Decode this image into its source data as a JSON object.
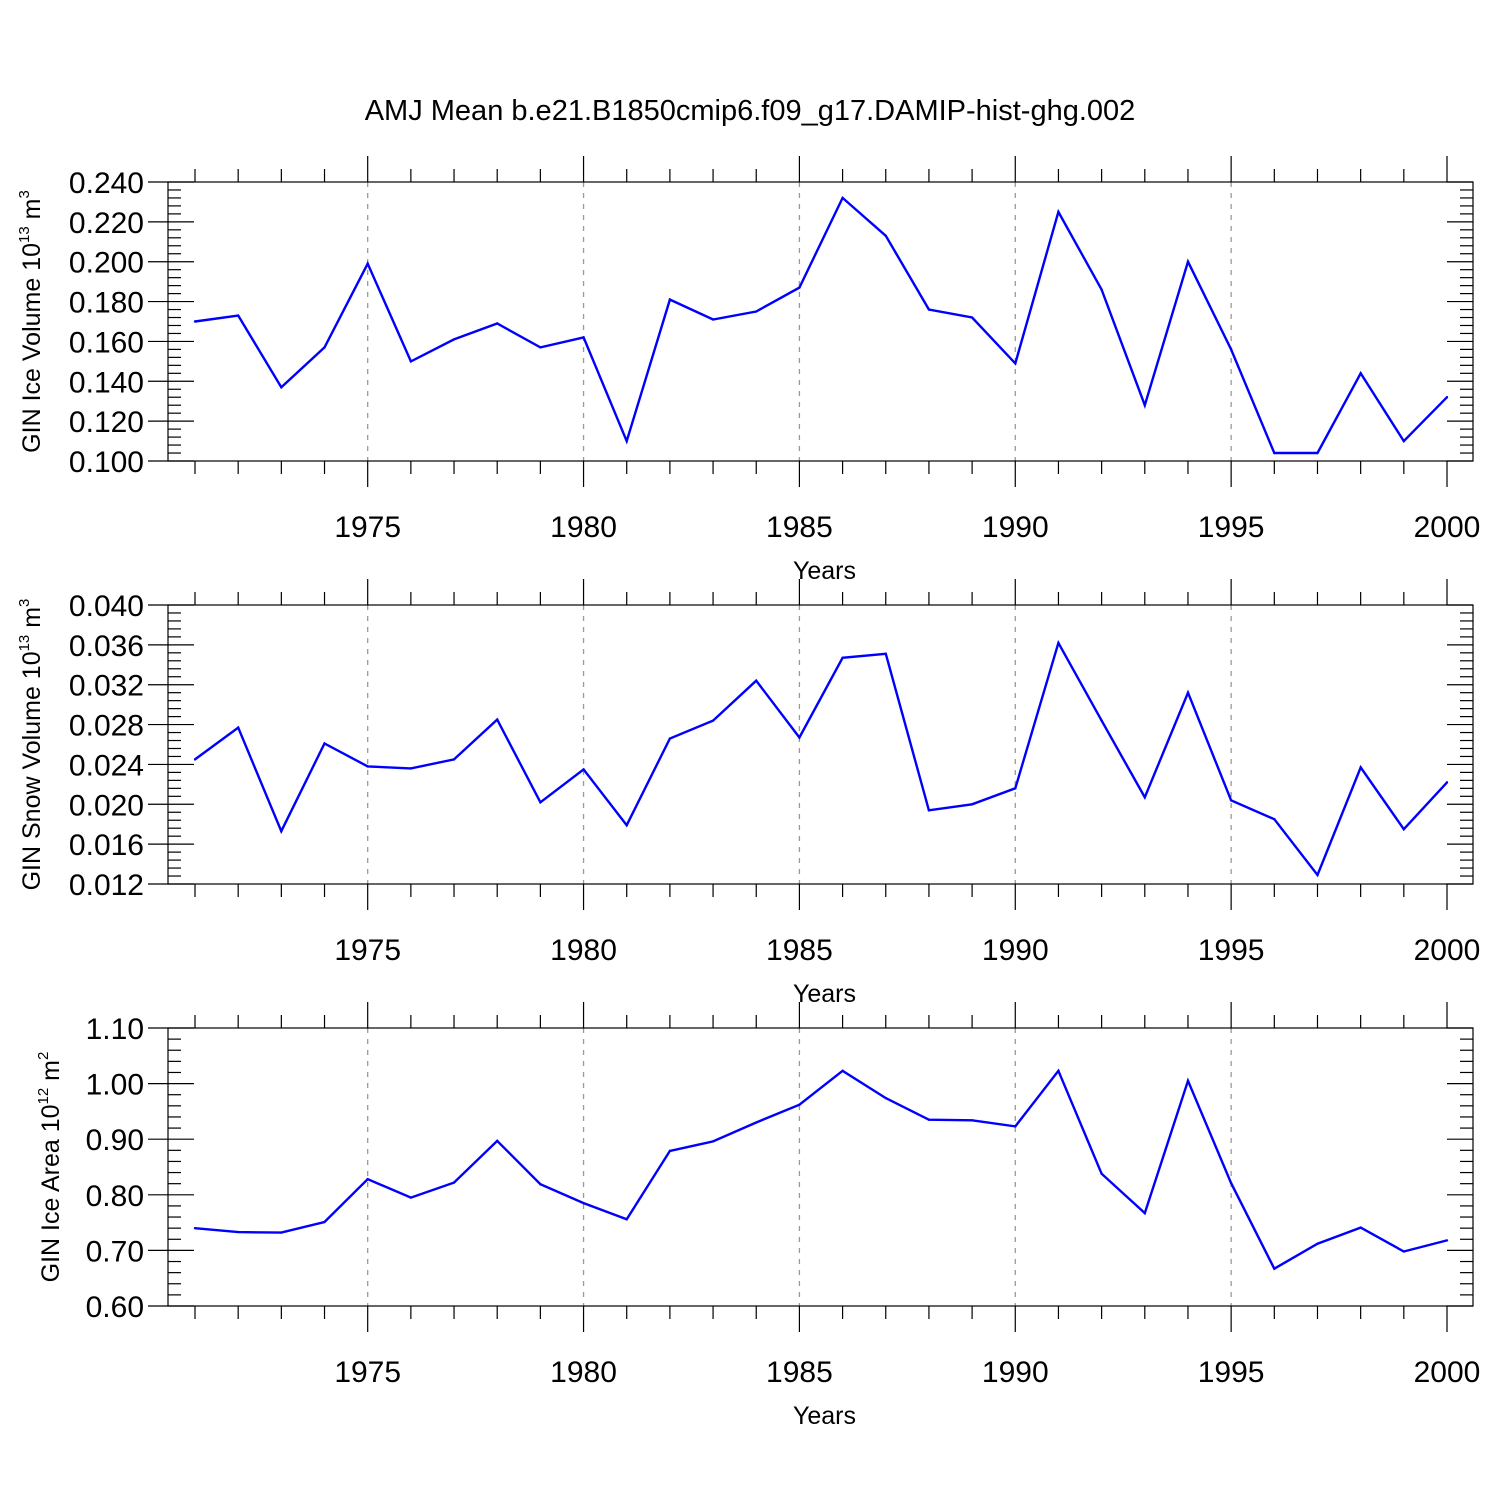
{
  "title": "AMJ Mean b.e21.B1850cmip6.f09_g17.DAMIP-hist-ghg.002",
  "colors": {
    "series": "#0000ff",
    "axis": "#000000",
    "grid": "#999999"
  },
  "chart_data": [
    {
      "type": "line",
      "xlabel": "Years",
      "ylabel": {
        "prefix": "GIN Ice Volume 10",
        "exponent": "13",
        "unit": " m",
        "unit_exponent": "3"
      },
      "xlim": [
        1971,
        2000
      ],
      "ylim": [
        0.1,
        0.24
      ],
      "xticks": [
        1975,
        1980,
        1985,
        1990,
        1995,
        2000
      ],
      "yticks": [
        0.1,
        0.12,
        0.14,
        0.16,
        0.18,
        0.2,
        0.22,
        0.24
      ],
      "ytick_labels": [
        "0.100",
        "0.120",
        "0.140",
        "0.160",
        "0.180",
        "0.200",
        "0.220",
        "0.240"
      ],
      "grid": "vertical dashed at major x ticks",
      "x": [
        1971,
        1972,
        1973,
        1974,
        1975,
        1976,
        1977,
        1978,
        1979,
        1980,
        1981,
        1982,
        1983,
        1984,
        1985,
        1986,
        1987,
        1988,
        1989,
        1990,
        1991,
        1992,
        1993,
        1994,
        1995,
        1996,
        1997,
        1998,
        1999,
        2000
      ],
      "values": [
        0.17,
        0.173,
        0.137,
        0.157,
        0.199,
        0.15,
        0.161,
        0.169,
        0.157,
        0.162,
        0.11,
        0.181,
        0.171,
        0.175,
        0.187,
        0.232,
        0.213,
        0.176,
        0.172,
        0.149,
        0.225,
        0.186,
        0.128,
        0.2,
        0.156,
        0.104,
        0.104,
        0.144,
        0.11,
        0.132
      ]
    },
    {
      "type": "line",
      "xlabel": "Years",
      "ylabel": {
        "prefix": "GIN Snow Volume 10",
        "exponent": "13",
        "unit": " m",
        "unit_exponent": "3"
      },
      "xlim": [
        1971,
        2000
      ],
      "ylim": [
        0.012,
        0.04
      ],
      "xticks": [
        1975,
        1980,
        1985,
        1990,
        1995,
        2000
      ],
      "yticks": [
        0.012,
        0.016,
        0.02,
        0.024,
        0.028,
        0.032,
        0.036,
        0.04
      ],
      "ytick_labels": [
        "0.012",
        "0.016",
        "0.020",
        "0.024",
        "0.028",
        "0.032",
        "0.036",
        "0.040"
      ],
      "grid": "vertical dashed at major x ticks",
      "x": [
        1971,
        1972,
        1973,
        1974,
        1975,
        1976,
        1977,
        1978,
        1979,
        1980,
        1981,
        1982,
        1983,
        1984,
        1985,
        1986,
        1987,
        1988,
        1989,
        1990,
        1991,
        1992,
        1993,
        1994,
        1995,
        1996,
        1997,
        1998,
        1999,
        2000
      ],
      "values": [
        0.0245,
        0.0277,
        0.0173,
        0.0261,
        0.0238,
        0.0236,
        0.0245,
        0.0285,
        0.0202,
        0.0235,
        0.0179,
        0.0266,
        0.0284,
        0.0324,
        0.0267,
        0.0347,
        0.0351,
        0.0194,
        0.02,
        0.0216,
        0.0362,
        0.0284,
        0.0207,
        0.0312,
        0.0204,
        0.0185,
        0.0129,
        0.0237,
        0.0175,
        0.0222
      ]
    },
    {
      "type": "line",
      "xlabel": "Years",
      "ylabel": {
        "prefix": "GIN Ice Area 10",
        "exponent": "12",
        "unit": " m",
        "unit_exponent": "2"
      },
      "xlim": [
        1971,
        2000
      ],
      "ylim": [
        0.6,
        1.1
      ],
      "xticks": [
        1975,
        1980,
        1985,
        1990,
        1995,
        2000
      ],
      "yticks": [
        0.6,
        0.7,
        0.8,
        0.9,
        1.0,
        1.1
      ],
      "ytick_labels": [
        "0.60",
        "0.70",
        "0.80",
        "0.90",
        "1.00",
        "1.10"
      ],
      "grid": "vertical dashed at major x ticks",
      "x": [
        1971,
        1972,
        1973,
        1974,
        1975,
        1976,
        1977,
        1978,
        1979,
        1980,
        1981,
        1982,
        1983,
        1984,
        1985,
        1986,
        1987,
        1988,
        1989,
        1990,
        1991,
        1992,
        1993,
        1994,
        1995,
        1996,
        1997,
        1998,
        1999,
        2000
      ],
      "values": [
        0.74,
        0.733,
        0.732,
        0.751,
        0.828,
        0.795,
        0.822,
        0.897,
        0.819,
        0.785,
        0.756,
        0.879,
        0.896,
        0.93,
        0.962,
        1.023,
        0.974,
        0.935,
        0.934,
        0.923,
        1.023,
        0.838,
        0.767,
        1.005,
        0.821,
        0.667,
        0.712,
        0.741,
        0.698,
        0.718
      ]
    }
  ]
}
